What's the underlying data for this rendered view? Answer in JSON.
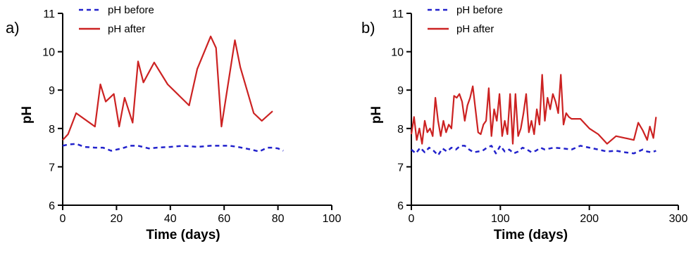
{
  "chart_data": [
    {
      "type": "line",
      "panel_label": "a)",
      "xlabel": "Time (days)",
      "ylabel": "pH",
      "xlim": [
        0,
        100
      ],
      "ylim": [
        6,
        11
      ],
      "xticks": [
        0,
        20,
        40,
        60,
        80,
        100
      ],
      "yticks": [
        6,
        7,
        8,
        9,
        10,
        11
      ],
      "grid": false,
      "legend_position": "top-left",
      "series": [
        {
          "name": "pH before",
          "color": "#2222cc",
          "style": "dashed",
          "x": [
            0,
            2,
            5,
            8,
            12,
            15,
            18,
            22,
            25,
            28,
            32,
            35,
            40,
            45,
            50,
            55,
            58,
            62,
            65,
            70,
            73,
            76,
            78,
            80,
            82
          ],
          "y": [
            7.55,
            7.58,
            7.6,
            7.52,
            7.5,
            7.5,
            7.42,
            7.48,
            7.55,
            7.55,
            7.48,
            7.5,
            7.52,
            7.55,
            7.52,
            7.55,
            7.55,
            7.55,
            7.52,
            7.45,
            7.4,
            7.5,
            7.5,
            7.48,
            7.42
          ]
        },
        {
          "name": "pH after",
          "color": "#cc2222",
          "style": "solid",
          "x": [
            0,
            2,
            5,
            12,
            14,
            16,
            19,
            21,
            23,
            26,
            28,
            30,
            34,
            39,
            47,
            50,
            55,
            57,
            59,
            64,
            66,
            71,
            74,
            78
          ],
          "y": [
            7.7,
            7.85,
            8.4,
            8.05,
            9.15,
            8.7,
            8.9,
            8.05,
            8.8,
            8.15,
            9.75,
            9.2,
            9.72,
            9.15,
            8.6,
            9.55,
            10.4,
            10.1,
            8.05,
            10.3,
            9.6,
            8.4,
            8.2,
            8.45
          ]
        }
      ]
    },
    {
      "type": "line",
      "panel_label": "b)",
      "xlabel": "Time (days)",
      "ylabel": "pH",
      "xlim": [
        0,
        300
      ],
      "ylim": [
        6,
        11
      ],
      "xticks": [
        0,
        100,
        200,
        300
      ],
      "yticks": [
        6,
        7,
        8,
        9,
        10,
        11
      ],
      "grid": false,
      "legend_position": "top-left",
      "series": [
        {
          "name": "pH before",
          "color": "#2222cc",
          "style": "dashed",
          "x": [
            0,
            5,
            10,
            15,
            20,
            25,
            30,
            35,
            40,
            45,
            50,
            55,
            60,
            65,
            70,
            75,
            80,
            85,
            90,
            95,
            100,
            105,
            110,
            115,
            120,
            125,
            130,
            135,
            140,
            145,
            150,
            160,
            170,
            180,
            190,
            200,
            210,
            220,
            230,
            240,
            250,
            255,
            260,
            265,
            270,
            275
          ],
          "y": [
            7.45,
            7.35,
            7.5,
            7.38,
            7.5,
            7.42,
            7.3,
            7.48,
            7.4,
            7.5,
            7.45,
            7.55,
            7.55,
            7.45,
            7.38,
            7.4,
            7.42,
            7.5,
            7.55,
            7.35,
            7.55,
            7.4,
            7.45,
            7.35,
            7.4,
            7.5,
            7.45,
            7.38,
            7.42,
            7.5,
            7.45,
            7.5,
            7.48,
            7.45,
            7.55,
            7.5,
            7.45,
            7.4,
            7.42,
            7.38,
            7.35,
            7.4,
            7.45,
            7.4,
            7.38,
            7.42
          ],
          "x_note": "",
          "y_note": ""
        },
        {
          "name": "pH after",
          "color": "#cc2222",
          "style": "solid",
          "x": [
            0,
            3,
            6,
            9,
            12,
            15,
            18,
            21,
            24,
            27,
            30,
            33,
            36,
            39,
            42,
            45,
            48,
            51,
            54,
            57,
            60,
            63,
            66,
            69,
            72,
            75,
            78,
            81,
            84,
            87,
            90,
            93,
            96,
            99,
            102,
            105,
            108,
            111,
            114,
            117,
            120,
            123,
            126,
            129,
            132,
            135,
            138,
            141,
            144,
            147,
            150,
            153,
            156,
            159,
            162,
            165,
            168,
            171,
            174,
            177,
            180,
            190,
            200,
            210,
            220,
            230,
            240,
            250,
            255,
            260,
            265,
            268,
            272,
            275
          ],
          "y": [
            7.85,
            8.3,
            7.7,
            8.0,
            7.6,
            8.2,
            7.9,
            8.0,
            7.8,
            8.8,
            8.2,
            7.8,
            8.2,
            7.9,
            8.1,
            8.0,
            8.85,
            8.8,
            8.9,
            8.7,
            8.2,
            8.6,
            8.8,
            9.1,
            8.5,
            7.9,
            7.85,
            8.1,
            8.2,
            9.05,
            7.8,
            8.5,
            8.2,
            8.9,
            7.8,
            8.2,
            7.85,
            8.9,
            7.6,
            8.9,
            7.8,
            8.0,
            8.4,
            8.9,
            7.9,
            8.2,
            7.85,
            8.5,
            8.1,
            9.4,
            8.2,
            8.8,
            8.5,
            8.9,
            8.7,
            8.4,
            9.4,
            8.1,
            8.4,
            8.3,
            8.25,
            8.25,
            8.0,
            7.85,
            7.6,
            7.8,
            7.75,
            7.7,
            8.15,
            7.95,
            7.7,
            8.05,
            7.75,
            8.3
          ]
        }
      ]
    }
  ]
}
